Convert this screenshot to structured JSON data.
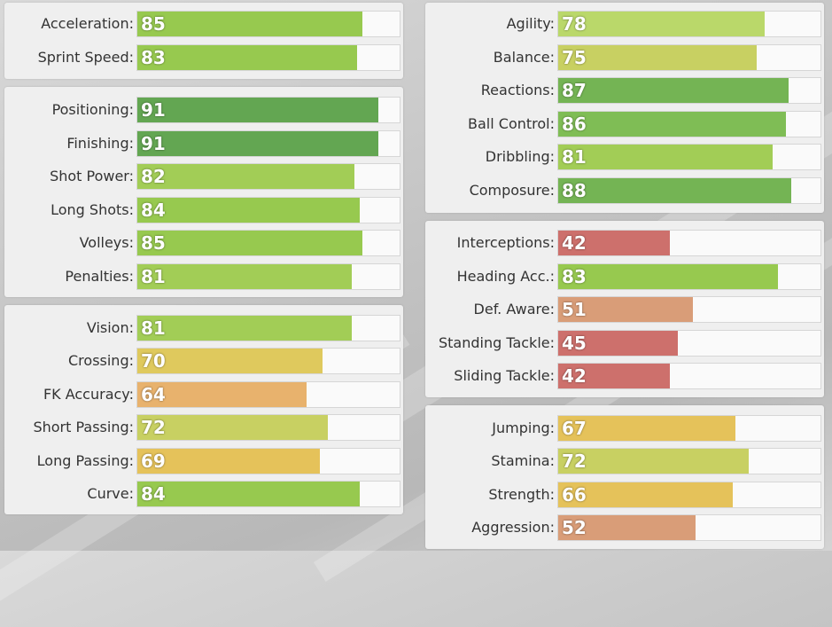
{
  "colors": {
    "elite": "#63a652",
    "great": "#7fbd55",
    "good": "#97c94f",
    "light_green": "#bad86a",
    "yellow_green": "#c8d062",
    "yellow": "#dfc95d",
    "amber": "#e5c25a",
    "orange": "#e8b26d",
    "salmon": "#d99d78",
    "red": "#cd706c"
  },
  "panels": [
    {
      "id": "pace",
      "stats": [
        {
          "label": "Acceleration:",
          "value": 85,
          "color": "#97c94f"
        },
        {
          "label": "Sprint Speed:",
          "value": 83,
          "color": "#97c94f"
        }
      ]
    },
    {
      "id": "shooting",
      "stats": [
        {
          "label": "Positioning:",
          "value": 91,
          "color": "#63a652"
        },
        {
          "label": "Finishing:",
          "value": 91,
          "color": "#63a652"
        },
        {
          "label": "Shot Power:",
          "value": 82,
          "color": "#a2cd56"
        },
        {
          "label": "Long Shots:",
          "value": 84,
          "color": "#97c94f"
        },
        {
          "label": "Volleys:",
          "value": 85,
          "color": "#97c94f"
        },
        {
          "label": "Penalties:",
          "value": 81,
          "color": "#a2cd56"
        }
      ]
    },
    {
      "id": "passing",
      "stats": [
        {
          "label": "Vision:",
          "value": 81,
          "color": "#a2cd56"
        },
        {
          "label": "Crossing:",
          "value": 70,
          "color": "#dfc95d"
        },
        {
          "label": "FK Accuracy:",
          "value": 64,
          "color": "#e8b26d"
        },
        {
          "label": "Short Passing:",
          "value": 72,
          "color": "#c8d062"
        },
        {
          "label": "Long Passing:",
          "value": 69,
          "color": "#e5c25a"
        },
        {
          "label": "Curve:",
          "value": 84,
          "color": "#97c94f"
        }
      ]
    },
    {
      "id": "dribbling",
      "stats": [
        {
          "label": "Agility:",
          "value": 78,
          "color": "#bad86a"
        },
        {
          "label": "Balance:",
          "value": 75,
          "color": "#c8d062"
        },
        {
          "label": "Reactions:",
          "value": 87,
          "color": "#74b454"
        },
        {
          "label": "Ball Control:",
          "value": 86,
          "color": "#7fbd55"
        },
        {
          "label": "Dribbling:",
          "value": 81,
          "color": "#a2cd56"
        },
        {
          "label": "Composure:",
          "value": 88,
          "color": "#74b454"
        }
      ]
    },
    {
      "id": "defending",
      "stats": [
        {
          "label": "Interceptions:",
          "value": 42,
          "color": "#cd706c"
        },
        {
          "label": "Heading Acc.:",
          "value": 83,
          "color": "#97c94f"
        },
        {
          "label": "Def. Aware:",
          "value": 51,
          "color": "#d99d78"
        },
        {
          "label": "Standing Tackle:",
          "value": 45,
          "color": "#cd706c"
        },
        {
          "label": "Sliding Tackle:",
          "value": 42,
          "color": "#cd706c"
        }
      ]
    },
    {
      "id": "physical",
      "stats": [
        {
          "label": "Jumping:",
          "value": 67,
          "color": "#e5c25a"
        },
        {
          "label": "Stamina:",
          "value": 72,
          "color": "#c8d062"
        },
        {
          "label": "Strength:",
          "value": 66,
          "color": "#e5c25a"
        },
        {
          "label": "Aggression:",
          "value": 52,
          "color": "#d99d78"
        }
      ]
    }
  ]
}
